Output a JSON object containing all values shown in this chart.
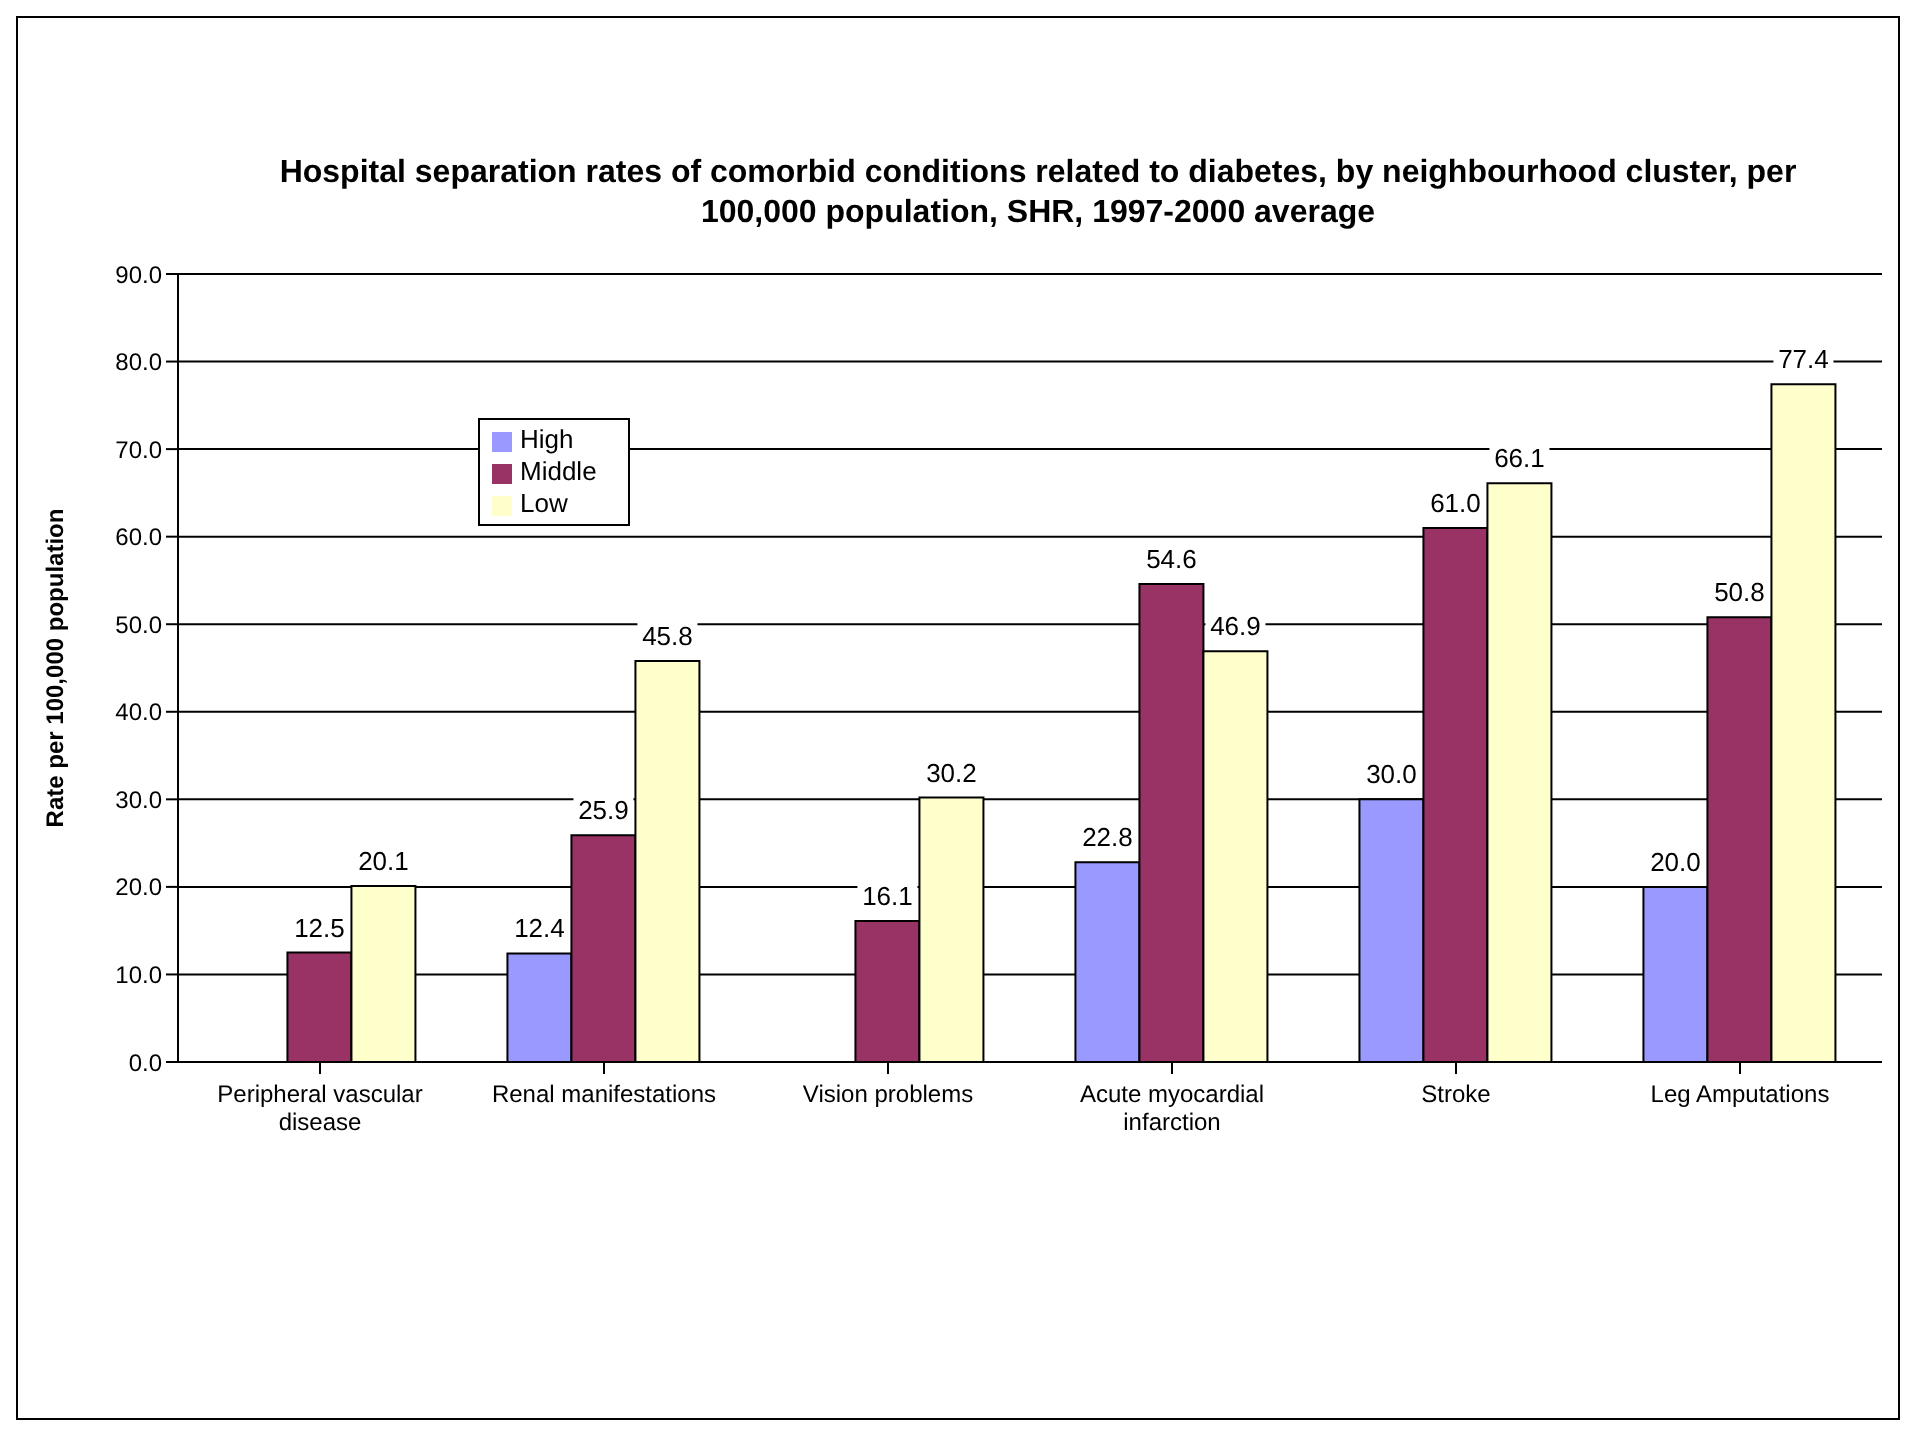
{
  "chart_data": {
    "type": "bar",
    "title": "Hospital separation rates of comorbid conditions related to diabetes, by neighbourhood cluster, per 100,000 population, SHR, 1997-2000 average",
    "ylabel": "Rate per 100,000 population",
    "categories": [
      "Peripheral vascular disease",
      "Renal manifestations",
      "Vision problems",
      "Acute myocardial infarction",
      "Stroke",
      "Leg Amputations"
    ],
    "series": [
      {
        "name": "High",
        "color": "#9999ff",
        "values": [
          null,
          12.4,
          null,
          22.8,
          30.0,
          20.0
        ],
        "value_labels": [
          null,
          "12.4",
          null,
          "22.8",
          "30.0",
          "20.0"
        ]
      },
      {
        "name": "Middle",
        "color": "#993366",
        "values": [
          12.5,
          25.9,
          16.1,
          54.6,
          61.0,
          50.8
        ],
        "value_labels": [
          "12.5",
          "25.9",
          "16.1",
          "54.6",
          "61.0",
          "50.8"
        ]
      },
      {
        "name": "Low",
        "color": "#ffffcc",
        "values": [
          20.1,
          45.8,
          30.2,
          46.9,
          66.1,
          77.4
        ],
        "value_labels": [
          "20.1",
          "45.8",
          "30.2",
          "46.9",
          "66.1",
          "77.4"
        ]
      }
    ],
    "ylim": [
      0,
      90
    ],
    "yticks": [
      {
        "value": 0,
        "label": "0.0"
      },
      {
        "value": 10,
        "label": "10.0"
      },
      {
        "value": 20,
        "label": "20.0"
      },
      {
        "value": 30,
        "label": "30.0"
      },
      {
        "value": 40,
        "label": "40.0"
      },
      {
        "value": 50,
        "label": "50.0"
      },
      {
        "value": 60,
        "label": "60.0"
      },
      {
        "value": 70,
        "label": "70.0"
      },
      {
        "value": 80,
        "label": "80.0"
      },
      {
        "value": 90,
        "label": "90.0"
      }
    ],
    "grid": "y",
    "legend": "top left"
  }
}
